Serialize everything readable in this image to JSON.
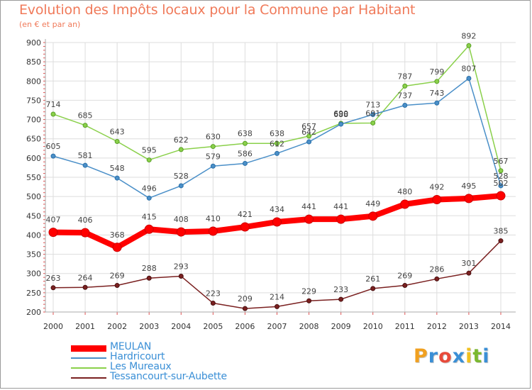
{
  "title": "Evolution des Impôts locaux pour la Commune par Habitant",
  "subtitle": "(en € et par an)",
  "logo": {
    "letters": [
      "P",
      "r",
      "o",
      "x",
      "i",
      "t",
      "i"
    ],
    "colors": [
      "#f0a020",
      "#3a8fd6",
      "#e84a3a",
      "#3a8fd6",
      "#f0c020",
      "#7ab830",
      "#3a8fd6"
    ]
  },
  "chart_data": {
    "type": "line",
    "x": [
      "2000",
      "2001",
      "2002",
      "2003",
      "2004",
      "2005",
      "2006",
      "2007",
      "2008",
      "2009",
      "2010",
      "2011",
      "2012",
      "2013",
      "2014"
    ],
    "ylim": [
      200,
      900
    ],
    "yticks": [
      "200",
      "250",
      "300",
      "350",
      "400",
      "450",
      "500",
      "550",
      "600",
      "650",
      "700",
      "750",
      "800",
      "850",
      "900"
    ],
    "grid": true,
    "legend_position": "bottom-left",
    "series": [
      {
        "name": "MEULAN",
        "color": "#ff0000",
        "values": [
          407,
          406,
          368,
          415,
          408,
          410,
          421,
          434,
          441,
          441,
          449,
          480,
          492,
          495,
          502
        ],
        "labels": [
          "407",
          "406",
          "368",
          "415",
          "408",
          "410",
          "421",
          "434",
          "441",
          "441",
          "449",
          "480",
          "492",
          "495",
          "502"
        ]
      },
      {
        "name": "Hardricourt",
        "color": "#4a8fc8",
        "values": [
          605,
          581,
          548,
          496,
          528,
          579,
          586,
          612,
          642,
          688,
          713,
          737,
          743,
          807,
          528
        ],
        "labels": [
          "605",
          "581",
          "548",
          "496",
          "528",
          "579",
          "586",
          "612",
          "642",
          "688",
          "713",
          "737",
          "743",
          "807",
          "528"
        ]
      },
      {
        "name": "Les Mureaux",
        "color": "#8ad04a",
        "values": [
          714,
          685,
          643,
          595,
          622,
          630,
          638,
          638,
          657,
          690,
          691,
          787,
          799,
          892,
          567
        ],
        "labels": [
          "714",
          "685",
          "643",
          "595",
          "622",
          "630",
          "638",
          "638",
          "657",
          "690",
          "691",
          "787",
          "799",
          "892",
          "567"
        ]
      },
      {
        "name": "Tessancourt-sur-Aubette",
        "color": "#7a2020",
        "values": [
          263,
          264,
          269,
          288,
          293,
          223,
          209,
          214,
          229,
          233,
          261,
          269,
          286,
          301,
          385
        ],
        "labels": [
          "263",
          "264",
          "269",
          "288",
          "293",
          "223",
          "209",
          "214",
          "229",
          "233",
          "261",
          "269",
          "286",
          "301",
          "385"
        ]
      }
    ]
  }
}
